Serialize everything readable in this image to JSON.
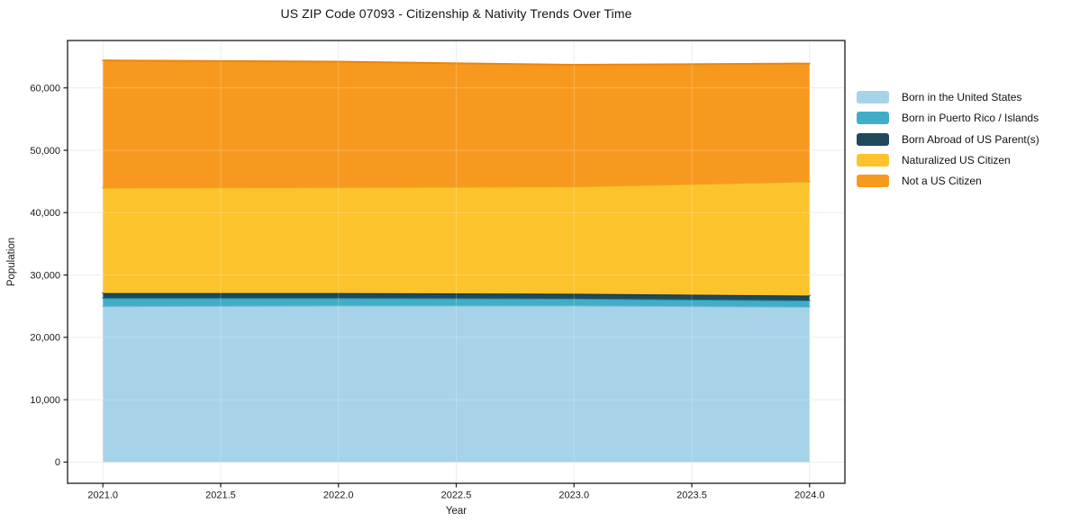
{
  "title": "US ZIP Code 07093 - Citizenship & Nativity Trends Over Time",
  "colors": {
    "background": "#ffffff",
    "grid": "#e9e9e9",
    "grid_overlay": "rgba(255,255,255,0.22)",
    "spine": "#1a1a1a",
    "text": "#1a1a1a"
  },
  "chart_data": {
    "type": "area",
    "stacked": true,
    "title": "US ZIP Code 07093 - Citizenship & Nativity Trends Over Time",
    "xlabel": "Year",
    "ylabel": "Population",
    "x": [
      2021,
      2022,
      2023,
      2024
    ],
    "xlim": [
      2020.85,
      2024.15
    ],
    "ylim": [
      -3400,
      67600
    ],
    "grid": true,
    "legend_position": "right",
    "xticks": {
      "values": [
        2021.0,
        2021.5,
        2022.0,
        2022.5,
        2023.0,
        2023.5,
        2024.0
      ],
      "labels": [
        "2021.0",
        "2021.5",
        "2022.0",
        "2022.5",
        "2023.0",
        "2023.5",
        "2024.0"
      ]
    },
    "yticks": {
      "values": [
        0,
        10000,
        20000,
        30000,
        40000,
        50000,
        60000
      ],
      "labels": [
        "0",
        "10,000",
        "20,000",
        "30,000",
        "40,000",
        "50,000",
        "60,000"
      ]
    },
    "series": [
      {
        "name": "Born in the United States",
        "color": "#a6d3e8",
        "edge": "#7db9d6",
        "values": [
          25000,
          25100,
          25100,
          24900
        ]
      },
      {
        "name": "Born in Puerto Rico / Islands",
        "color": "#41aec8",
        "edge": "#2d93ad",
        "values": [
          1300,
          1200,
          1100,
          1000
        ]
      },
      {
        "name": "Born Abroad of US Parent(s)",
        "color": "#1f4a5c",
        "edge": "#12333f",
        "values": [
          800,
          800,
          800,
          800
        ]
      },
      {
        "name": "Naturalized US Citizen",
        "color": "#fdc32d",
        "edge": "#e8a71a",
        "values": [
          16900,
          17000,
          17200,
          18300
        ]
      },
      {
        "name": "Not a US Citizen",
        "color": "#f8991f",
        "edge": "#ea8410",
        "values": [
          20400,
          20100,
          19500,
          18900
        ]
      }
    ]
  }
}
